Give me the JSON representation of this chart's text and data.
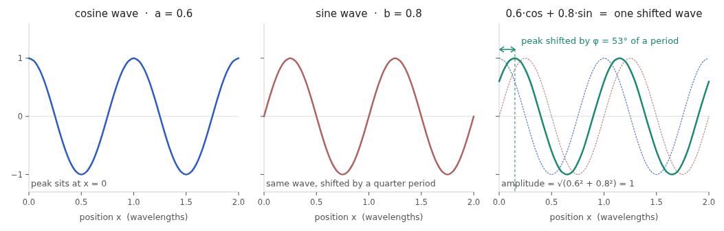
{
  "chart_data": [
    {
      "type": "line",
      "title": "cosine wave  ·  a = 0.6",
      "xlabel": "position x  (wavelengths)",
      "x": [
        0,
        0.05,
        0.1,
        0.15,
        0.2,
        0.25,
        0.3,
        0.35,
        0.4,
        0.45,
        0.5,
        0.55,
        0.6,
        0.65,
        0.7,
        0.75,
        0.8,
        0.85,
        0.9,
        0.95,
        1,
        1.05,
        1.1,
        1.15,
        1.2,
        1.25,
        1.3,
        1.35,
        1.4,
        1.45,
        1.5,
        1.55,
        1.6,
        1.65,
        1.7,
        1.75,
        1.8,
        1.85,
        1.9,
        1.95,
        2
      ],
      "series": [
        {
          "color": "#2a5bc8",
          "values": [
            1,
            0.95,
            0.81,
            0.59,
            0.31,
            0,
            -0.31,
            -0.59,
            -0.81,
            -0.95,
            -1,
            -0.95,
            -0.81,
            -0.59,
            -0.31,
            0,
            0.31,
            0.59,
            0.81,
            0.95,
            1,
            0.95,
            0.81,
            0.59,
            0.31,
            0,
            -0.31,
            -0.59,
            -0.81,
            -0.95,
            -1,
            -0.95,
            -0.81,
            -0.59,
            -0.31,
            0,
            0.31,
            0.59,
            0.81,
            0.95,
            1
          ]
        }
      ],
      "xlim": [
        0,
        2
      ],
      "ylim": [
        -1.3,
        1.6
      ],
      "xticks": [
        {
          "value": 0,
          "label": "0.0"
        },
        {
          "value": 0.5,
          "label": "0.5"
        },
        {
          "value": 1,
          "label": "1.0"
        },
        {
          "value": 1.5,
          "label": "1.5"
        },
        {
          "value": 2,
          "label": "2.0"
        }
      ],
      "yticks": [
        {
          "value": -1,
          "label": "−1"
        },
        0,
        1
      ],
      "ref_lines": [
        {
          "axis": "y",
          "value": 0,
          "color": "#dddddd"
        }
      ],
      "annotations": [
        "peak sits at x = 0"
      ],
      "line_style": "solid",
      "marker": "none",
      "grid": false
    },
    {
      "type": "line",
      "title": "sine wave  ·  b = 0.8",
      "xlabel": "position x  (wavelengths)",
      "x": [
        0,
        0.05,
        0.1,
        0.15,
        0.2,
        0.25,
        0.3,
        0.35,
        0.4,
        0.45,
        0.5,
        0.55,
        0.6,
        0.65,
        0.7,
        0.75,
        0.8,
        0.85,
        0.9,
        0.95,
        1,
        1.05,
        1.1,
        1.15,
        1.2,
        1.25,
        1.3,
        1.35,
        1.4,
        1.45,
        1.5,
        1.55,
        1.6,
        1.65,
        1.7,
        1.75,
        1.8,
        1.85,
        1.9,
        1.95,
        2
      ],
      "series": [
        {
          "color": "#b06262",
          "values": [
            0,
            0.31,
            0.59,
            0.81,
            0.95,
            1,
            0.95,
            0.81,
            0.59,
            0.31,
            0,
            -0.31,
            -0.59,
            -0.81,
            -0.95,
            -1,
            -0.95,
            -0.81,
            -0.59,
            -0.31,
            0,
            0.31,
            0.59,
            0.81,
            0.95,
            1,
            0.95,
            0.81,
            0.59,
            0.31,
            0,
            -0.31,
            -0.59,
            -0.81,
            -0.95,
            -1,
            -0.95,
            -0.81,
            -0.59,
            -0.31,
            0
          ]
        }
      ],
      "xlim": [
        0,
        2
      ],
      "ylim": [
        -1.3,
        1.6
      ],
      "xticks": [
        {
          "value": 0,
          "label": "0.0"
        },
        {
          "value": 0.5,
          "label": "0.5"
        },
        {
          "value": 1,
          "label": "1.0"
        },
        {
          "value": 1.5,
          "label": "1.5"
        },
        {
          "value": 2,
          "label": "2.0"
        }
      ],
      "yticks": [
        -1,
        0,
        1
      ],
      "tick_labels": "x",
      "ref_lines": [
        {
          "axis": "y",
          "value": 0,
          "color": "#dddddd"
        }
      ],
      "annotations": [
        "same wave, shifted by a quarter period"
      ],
      "line_style": "solid",
      "marker": "none",
      "grid": false
    },
    {
      "type": "line",
      "title": "0.6·cos + 0.8·sin  =  one shifted wave",
      "xlabel": "position x  (wavelengths)",
      "x": [
        0,
        0.05,
        0.1,
        0.15,
        0.2,
        0.25,
        0.3,
        0.35,
        0.4,
        0.45,
        0.5,
        0.55,
        0.6,
        0.65,
        0.7,
        0.75,
        0.8,
        0.85,
        0.9,
        0.95,
        1,
        1.05,
        1.1,
        1.15,
        1.2,
        1.25,
        1.3,
        1.35,
        1.4,
        1.45,
        1.5,
        1.55,
        1.6,
        1.65,
        1.7,
        1.75,
        1.8,
        1.85,
        1.9,
        1.95,
        2
      ],
      "series": [
        {
          "color": "#5b7fd0",
          "line_style": "dotted",
          "values": [
            1,
            0.95,
            0.81,
            0.59,
            0.31,
            0,
            -0.31,
            -0.59,
            -0.81,
            -0.95,
            -1,
            -0.95,
            -0.81,
            -0.59,
            -0.31,
            0,
            0.31,
            0.59,
            0.81,
            0.95,
            1,
            0.95,
            0.81,
            0.59,
            0.31,
            0,
            -0.31,
            -0.59,
            -0.81,
            -0.95,
            -1,
            -0.95,
            -0.81,
            -0.59,
            -0.31,
            0,
            0.31,
            0.59,
            0.81,
            0.95,
            1
          ]
        },
        {
          "color": "#c48a8a",
          "line_style": "dotted",
          "values": [
            0,
            0.31,
            0.59,
            0.81,
            0.95,
            1,
            0.95,
            0.81,
            0.59,
            0.31,
            0,
            -0.31,
            -0.59,
            -0.81,
            -0.95,
            -1,
            -0.95,
            -0.81,
            -0.59,
            -0.31,
            0,
            0.31,
            0.59,
            0.81,
            0.95,
            1,
            0.95,
            0.81,
            0.59,
            0.31,
            0,
            -0.31,
            -0.59,
            -0.81,
            -0.95,
            -1,
            -0.95,
            -0.81,
            -0.59,
            -0.31,
            0
          ]
        },
        {
          "color": "#1b8a6e",
          "line_style": "solid",
          "values": [
            0.6,
            0.82,
            0.96,
            1,
            0.95,
            0.8,
            0.58,
            0.29,
            -0.02,
            -0.32,
            -0.6,
            -0.82,
            -0.96,
            -1,
            -0.95,
            -0.8,
            -0.58,
            -0.29,
            0.02,
            0.32,
            0.6,
            0.82,
            0.96,
            1,
            0.95,
            0.8,
            0.58,
            0.29,
            -0.02,
            -0.32,
            -0.6,
            -0.82,
            -0.96,
            -1,
            -0.95,
            -0.8,
            -0.58,
            -0.29,
            0.02,
            0.32,
            0.6
          ]
        }
      ],
      "xlim": [
        0,
        2
      ],
      "ylim": [
        -1.3,
        1.6
      ],
      "xticks": [
        {
          "value": 0,
          "label": "0.0"
        },
        {
          "value": 0.5,
          "label": "0.5"
        },
        {
          "value": 1,
          "label": "1.0"
        },
        {
          "value": 1.5,
          "label": "1.5"
        },
        {
          "value": 2,
          "label": "2.0"
        }
      ],
      "yticks": [
        -1,
        0,
        1
      ],
      "tick_labels": "x",
      "ref_lines": [
        {
          "axis": "y",
          "value": 0,
          "color": "#dddddd"
        },
        {
          "axis": "x",
          "value": 0.15,
          "color": "#1b8a6e",
          "line_style": "dashed"
        }
      ],
      "annotations": [
        "amplitude = √(0.6² + 0.8²) = 1",
        {
          "text": "peak shifted by φ = 53° of a period",
          "x": 0.15,
          "y": 1.15
        }
      ],
      "marker": "none",
      "grid": false
    }
  ]
}
